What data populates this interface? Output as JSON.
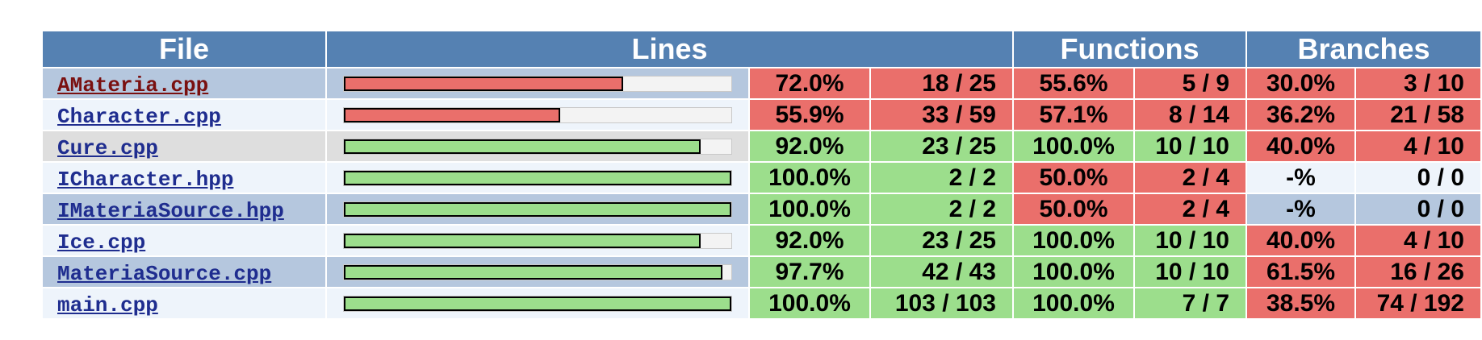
{
  "headers": {
    "file": "File",
    "lines": "Lines",
    "functions": "Functions",
    "branches": "Branches"
  },
  "colors": {
    "header": "#5581b2",
    "high": "#9cde8c",
    "low": "#ea6f6b",
    "row_light": "#eef4fb",
    "row_mid": "#b5c7de",
    "row_grey": "#dedede"
  },
  "rows": [
    {
      "file": "AMateria.cpp",
      "link_state": "visited",
      "row_bg": "#b5c7de",
      "line_fraction": 0.72,
      "line_pct": "72.0%",
      "line_count": "18 / 25",
      "line_level": "lo",
      "func_pct": "55.6%",
      "func_count": "5 / 9",
      "func_level": "lo",
      "branch_pct": "30.0%",
      "branch_count": "3 / 10",
      "branch_level": "lo"
    },
    {
      "file": "Character.cpp",
      "link_state": "link",
      "row_bg": "#eef4fb",
      "line_fraction": 0.559,
      "line_pct": "55.9%",
      "line_count": "33 / 59",
      "line_level": "lo",
      "func_pct": "57.1%",
      "func_count": "8 / 14",
      "func_level": "lo",
      "branch_pct": "36.2%",
      "branch_count": "21 / 58",
      "branch_level": "lo"
    },
    {
      "file": "Cure.cpp",
      "link_state": "link",
      "row_bg": "#dedede",
      "line_fraction": 0.92,
      "line_pct": "92.0%",
      "line_count": "23 / 25",
      "line_level": "hi",
      "func_pct": "100.0%",
      "func_count": "10 / 10",
      "func_level": "hi",
      "branch_pct": "40.0%",
      "branch_count": "4 / 10",
      "branch_level": "lo"
    },
    {
      "file": "ICharacter.hpp",
      "link_state": "link",
      "row_bg": "#eef4fb",
      "line_fraction": 1.0,
      "line_pct": "100.0%",
      "line_count": "2 / 2",
      "line_level": "hi",
      "func_pct": "50.0%",
      "func_count": "2 / 4",
      "func_level": "lo",
      "branch_pct": "-%",
      "branch_count": "0 / 0",
      "branch_level": "none"
    },
    {
      "file": "IMateriaSource.hpp",
      "link_state": "link",
      "row_bg": "#b5c7de",
      "line_fraction": 1.0,
      "line_pct": "100.0%",
      "line_count": "2 / 2",
      "line_level": "hi",
      "func_pct": "50.0%",
      "func_count": "2 / 4",
      "func_level": "lo",
      "branch_pct": "-%",
      "branch_count": "0 / 0",
      "branch_level": "none"
    },
    {
      "file": "Ice.cpp",
      "link_state": "link",
      "row_bg": "#eef4fb",
      "line_fraction": 0.92,
      "line_pct": "92.0%",
      "line_count": "23 / 25",
      "line_level": "hi",
      "func_pct": "100.0%",
      "func_count": "10 / 10",
      "func_level": "hi",
      "branch_pct": "40.0%",
      "branch_count": "4 / 10",
      "branch_level": "lo"
    },
    {
      "file": "MateriaSource.cpp",
      "link_state": "link",
      "row_bg": "#b5c7de",
      "line_fraction": 0.977,
      "line_pct": "97.7%",
      "line_count": "42 / 43",
      "line_level": "hi",
      "func_pct": "100.0%",
      "func_count": "10 / 10",
      "func_level": "hi",
      "branch_pct": "61.5%",
      "branch_count": "16 / 26",
      "branch_level": "lo"
    },
    {
      "file": "main.cpp",
      "link_state": "link",
      "row_bg": "#eef4fb",
      "line_fraction": 1.0,
      "line_pct": "100.0%",
      "line_count": "103 / 103",
      "line_level": "hi",
      "func_pct": "100.0%",
      "func_count": "7 / 7",
      "func_level": "hi",
      "branch_pct": "38.5%",
      "branch_count": "74 / 192",
      "branch_level": "lo"
    }
  ]
}
